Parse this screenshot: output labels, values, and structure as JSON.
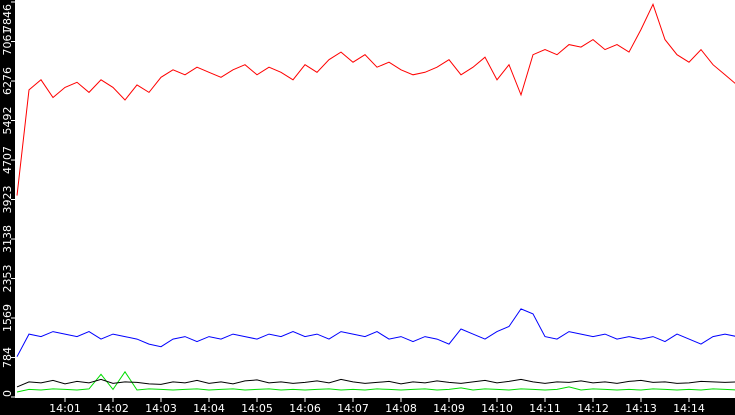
{
  "chart_data": {
    "type": "line",
    "title": "",
    "xlabel": "",
    "ylabel": "",
    "ylim": [
      0,
      7846
    ],
    "y_ticks": [
      "0",
      "784",
      "1569",
      "2353",
      "3138",
      "3923",
      "4707",
      "5492",
      "6276",
      "7061",
      "7846"
    ],
    "x_ticks": [
      "14:01",
      "14:02",
      "14:03",
      "14:04",
      "14:05",
      "14:06",
      "14:07",
      "14:08",
      "14:09",
      "14:10",
      "14:11",
      "14:12",
      "14:13",
      "14:14"
    ],
    "xlim": [
      "14:00",
      "14:15"
    ],
    "grid": false,
    "legend": "none",
    "x": [
      "14:00:00",
      "14:00:15",
      "14:00:30",
      "14:00:45",
      "14:01:00",
      "14:01:15",
      "14:01:30",
      "14:01:45",
      "14:02:00",
      "14:02:15",
      "14:02:30",
      "14:02:45",
      "14:03:00",
      "14:03:15",
      "14:03:30",
      "14:03:45",
      "14:04:00",
      "14:04:15",
      "14:04:30",
      "14:04:45",
      "14:05:00",
      "14:05:15",
      "14:05:30",
      "14:05:45",
      "14:06:00",
      "14:06:15",
      "14:06:30",
      "14:06:45",
      "14:07:00",
      "14:07:15",
      "14:07:30",
      "14:07:45",
      "14:08:00",
      "14:08:15",
      "14:08:30",
      "14:08:45",
      "14:09:00",
      "14:09:15",
      "14:09:30",
      "14:09:45",
      "14:10:00",
      "14:10:15",
      "14:10:30",
      "14:10:45",
      "14:11:00",
      "14:11:15",
      "14:11:30",
      "14:11:45",
      "14:12:00",
      "14:12:15",
      "14:12:30",
      "14:12:45",
      "14:13:00",
      "14:13:15",
      "14:13:30",
      "14:13:45",
      "14:14:00",
      "14:14:15",
      "14:14:30",
      "14:14:45",
      "14:15:00"
    ],
    "series": [
      {
        "color": "#ff0000",
        "values": [
          4000,
          6100,
          6300,
          5950,
          6150,
          6250,
          6050,
          6300,
          6150,
          5900,
          6200,
          6050,
          6350,
          6500,
          6400,
          6550,
          6450,
          6350,
          6500,
          6600,
          6400,
          6550,
          6450,
          6300,
          6600,
          6450,
          6700,
          6850,
          6650,
          6800,
          6550,
          6650,
          6500,
          6400,
          6450,
          6550,
          6700,
          6400,
          6550,
          6750,
          6300,
          6600,
          6000,
          6800,
          6900,
          6800,
          7000,
          6950,
          7100,
          6900,
          7000,
          6850,
          7300,
          7800,
          7100,
          6800,
          6650,
          6900,
          6600,
          6400,
          6200
        ]
      },
      {
        "color": "#0000ff",
        "values": [
          800,
          1250,
          1200,
          1300,
          1250,
          1200,
          1300,
          1150,
          1250,
          1200,
          1150,
          1050,
          1000,
          1150,
          1200,
          1100,
          1200,
          1150,
          1250,
          1200,
          1150,
          1250,
          1200,
          1300,
          1200,
          1250,
          1150,
          1300,
          1250,
          1200,
          1300,
          1150,
          1200,
          1100,
          1200,
          1150,
          1050,
          1350,
          1250,
          1150,
          1300,
          1400,
          1750,
          1650,
          1200,
          1150,
          1300,
          1250,
          1200,
          1250,
          1150,
          1200,
          1150,
          1200,
          1100,
          1250,
          1150,
          1050,
          1200,
          1250,
          1200
        ]
      },
      {
        "color": "#000000",
        "values": [
          200,
          300,
          280,
          330,
          260,
          310,
          280,
          350,
          270,
          300,
          290,
          260,
          250,
          300,
          280,
          330,
          270,
          300,
          260,
          320,
          340,
          280,
          300,
          270,
          290,
          320,
          280,
          350,
          300,
          270,
          290,
          310,
          260,
          300,
          280,
          320,
          290,
          270,
          300,
          330,
          280,
          310,
          350,
          300,
          270,
          300,
          290,
          320,
          280,
          300,
          270,
          310,
          330,
          290,
          300,
          270,
          280,
          310,
          300,
          290,
          300
        ]
      },
      {
        "color": "#00dd00",
        "values": [
          100,
          150,
          140,
          160,
          150,
          140,
          160,
          450,
          150,
          500,
          140,
          160,
          150,
          140,
          150,
          160,
          140,
          150,
          160,
          140,
          150,
          160,
          140,
          150,
          140,
          150,
          160,
          140,
          150,
          140,
          160,
          150,
          140,
          150,
          160,
          140,
          150,
          180,
          140,
          160,
          150,
          140,
          160,
          150,
          140,
          150,
          200,
          140,
          160,
          150,
          140,
          150,
          140,
          160,
          150,
          140,
          150,
          140,
          160,
          150,
          140
        ]
      }
    ]
  }
}
